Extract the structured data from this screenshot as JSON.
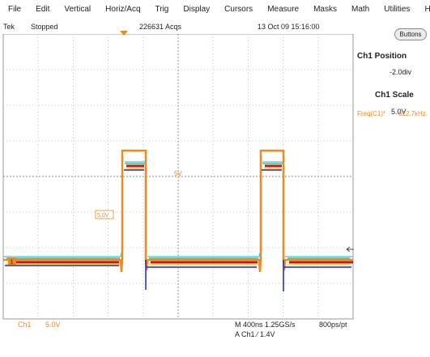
{
  "menu": {
    "items": [
      "File",
      "Edit",
      "Vertical",
      "Horiz/Acq",
      "Trig",
      "Display",
      "Cursors",
      "Measure",
      "Masks",
      "Math",
      "Utilities",
      "Help"
    ]
  },
  "status": {
    "brand": "Tek",
    "run_state": "Stopped",
    "acquisitions": "226631 Acqs",
    "datetime": "13 Oct 09 15:16:00"
  },
  "panel": {
    "buttons_label": "Buttons",
    "position_title": "Ch1 Position",
    "position_value": "-2.0div",
    "scale_title": "Ch1 Scale",
    "scale_value": "5.0V"
  },
  "measurement": {
    "label": "Freq(C1)*",
    "value": "612.7kHz"
  },
  "markers": {
    "channel_marker": "1",
    "level_5v": "5V",
    "level_box": "5.0V"
  },
  "bottom": {
    "ch_label": "Ch1",
    "ch_scale": "5.0V",
    "horizontal": "M 400ns 1.25GS/s",
    "record": "800ps/pt",
    "trigger": "A  Ch1  ∕  1.4V"
  },
  "colors": {
    "trace_orange": "#f08a1e",
    "trace_red": "#c8141e",
    "trace_yellow": "#ffd21e",
    "trace_green": "#32b45a",
    "trace_cyan": "#3cc8e6",
    "trace_blue": "#1e28b4"
  }
}
